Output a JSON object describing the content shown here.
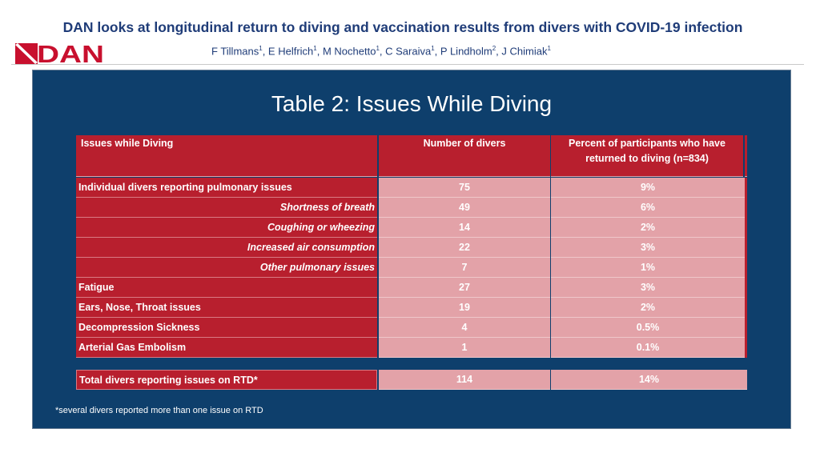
{
  "header": {
    "title": "DAN looks at longitudinal return to diving and vaccination results from divers with COVID-19 infection",
    "logo_text": "DAN",
    "authors": [
      {
        "name": "F Tillmans",
        "sup": "1"
      },
      {
        "name": "E Helfrich",
        "sup": "1"
      },
      {
        "name": "M Nochetto",
        "sup": "1"
      },
      {
        "name": "C Saraiva",
        "sup": "1"
      },
      {
        "name": "P Lindholm",
        "sup": "2"
      },
      {
        "name": "J Chimiak",
        "sup": "1"
      }
    ]
  },
  "colors": {
    "title_blue": "#1f3c78",
    "panel_navy": "#0e3f6c",
    "table_red": "#b81f2e",
    "table_pink": "#e3a2a8"
  },
  "table": {
    "title": "Table 2: Issues While Diving",
    "columns": [
      "Issues while Diving",
      "Number of divers",
      "Percent of participants who have returned to diving (n=834)"
    ],
    "rows": [
      {
        "label": "Individual divers reporting pulmonary issues",
        "count": "75",
        "percent": "9%",
        "sub": false
      },
      {
        "label": "Shortness of breath",
        "count": "49",
        "percent": "6%",
        "sub": true
      },
      {
        "label": "Coughing or wheezing",
        "count": "14",
        "percent": "2%",
        "sub": true
      },
      {
        "label": "Increased air consumption",
        "count": "22",
        "percent": "3%",
        "sub": true
      },
      {
        "label": "Other pulmonary issues",
        "count": "7",
        "percent": "1%",
        "sub": true
      },
      {
        "label": "Fatigue",
        "count": "27",
        "percent": "3%",
        "sub": false
      },
      {
        "label": "Ears, Nose, Throat issues",
        "count": "19",
        "percent": "2%",
        "sub": false
      },
      {
        "label": "Decompression Sickness",
        "count": "4",
        "percent": "0.5%",
        "sub": false
      },
      {
        "label": "Arterial Gas Embolism",
        "count": "1",
        "percent": "0.1%",
        "sub": false
      }
    ],
    "total": {
      "label": "Total divers reporting issues on RTD*",
      "count": "114",
      "percent": "14%"
    }
  },
  "footnote": "*several divers reported more than one issue on RTD"
}
